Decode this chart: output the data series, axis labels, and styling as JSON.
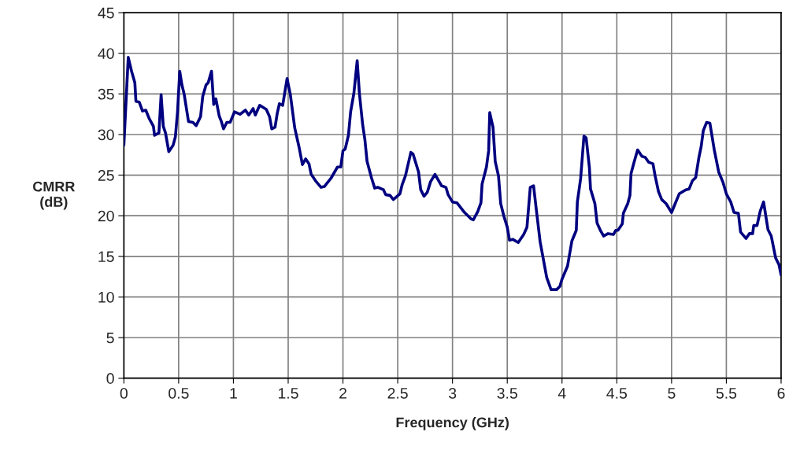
{
  "chart_data": {
    "type": "line",
    "xlabel": "Frequency (GHz)",
    "ylabel": "CMRR\n(dB)",
    "xlim": [
      0,
      6
    ],
    "xticks": [
      0,
      0.5,
      1,
      1.5,
      2,
      2.5,
      3,
      3.5,
      4,
      4.5,
      5,
      5.5,
      6
    ],
    "ylim": [
      0,
      45
    ],
    "yticks": [
      0,
      5,
      10,
      15,
      20,
      25,
      30,
      35,
      40,
      45
    ],
    "grid": true,
    "marker": "none",
    "line_style": "solid",
    "series": [
      {
        "color": "#000080",
        "x": [
          0,
          0.04,
          0.07,
          0.1,
          0.11,
          0.14,
          0.17,
          0.2,
          0.23,
          0.27,
          0.28,
          0.32,
          0.34,
          0.36,
          0.38,
          0.41,
          0.45,
          0.47,
          0.49,
          0.51,
          0.53,
          0.55,
          0.59,
          0.63,
          0.66,
          0.7,
          0.72,
          0.75,
          0.77,
          0.8,
          0.82,
          0.84,
          0.87,
          0.89,
          0.91,
          0.94,
          0.97,
          1.01,
          1.06,
          1.11,
          1.14,
          1.18,
          1.2,
          1.24,
          1.3,
          1.33,
          1.35,
          1.38,
          1.4,
          1.42,
          1.45,
          1.49,
          1.52,
          1.56,
          1.6,
          1.63,
          1.66,
          1.69,
          1.71,
          1.75,
          1.8,
          1.83,
          1.89,
          1.95,
          1.98,
          2.0,
          2.02,
          2.05,
          2.07,
          2.1,
          2.13,
          2.15,
          2.18,
          2.2,
          2.22,
          2.26,
          2.29,
          2.32,
          2.37,
          2.39,
          2.43,
          2.46,
          2.52,
          2.54,
          2.57,
          2.62,
          2.64,
          2.69,
          2.71,
          2.74,
          2.77,
          2.8,
          2.84,
          2.9,
          2.94,
          2.96,
          3.0,
          3.04,
          3.11,
          3.17,
          3.19,
          3.23,
          3.26,
          3.27,
          3.31,
          3.33,
          3.34,
          3.37,
          3.39,
          3.42,
          3.44,
          3.47,
          3.5,
          3.52,
          3.55,
          3.6,
          3.65,
          3.68,
          3.71,
          3.74,
          3.77,
          3.8,
          3.83,
          3.86,
          3.9,
          3.95,
          3.98,
          4.0,
          4.05,
          4.09,
          4.13,
          4.14,
          4.17,
          4.2,
          4.22,
          4.25,
          4.26,
          4.3,
          4.32,
          4.35,
          4.38,
          4.42,
          4.47,
          4.49,
          4.51,
          4.55,
          4.56,
          4.6,
          4.62,
          4.63,
          4.66,
          4.69,
          4.73,
          4.76,
          4.79,
          4.83,
          4.85,
          4.88,
          4.91,
          4.95,
          5.0,
          5.03,
          5.07,
          5.13,
          5.16,
          5.19,
          5.22,
          5.25,
          5.27,
          5.29,
          5.32,
          5.35,
          5.39,
          5.43,
          5.47,
          5.5,
          5.54,
          5.57,
          5.61,
          5.63,
          5.68,
          5.71,
          5.74,
          5.75,
          5.78,
          5.81,
          5.84,
          5.88,
          5.91,
          5.95,
          5.98,
          6.0
        ],
        "values": [
          28.7,
          39.5,
          37.8,
          36.4,
          34.1,
          34.0,
          32.9,
          33.0,
          32.0,
          31.0,
          29.9,
          30.2,
          34.9,
          31.0,
          30.2,
          27.9,
          28.7,
          29.7,
          32.8,
          37.8,
          36.1,
          35.0,
          31.6,
          31.5,
          31.1,
          32.2,
          34.7,
          36.1,
          36.4,
          37.8,
          33.7,
          34.4,
          32.3,
          31.6,
          30.7,
          31.5,
          31.5,
          32.8,
          32.5,
          33.0,
          32.4,
          33.2,
          32.4,
          33.6,
          33.1,
          32.2,
          30.7,
          30.9,
          32.6,
          33.8,
          33.6,
          36.9,
          34.9,
          30.8,
          28.4,
          26.3,
          27.0,
          26.4,
          25.1,
          24.3,
          23.5,
          23.6,
          24.6,
          26.0,
          26.0,
          28.0,
          28.2,
          29.9,
          32.8,
          35.1,
          39.1,
          35.1,
          31.2,
          29.4,
          26.7,
          24.7,
          23.4,
          23.5,
          23.2,
          22.6,
          22.5,
          22.0,
          22.7,
          23.8,
          24.9,
          27.8,
          27.6,
          25.4,
          23.2,
          22.4,
          22.9,
          24.2,
          25.1,
          23.7,
          23.5,
          22.6,
          21.7,
          21.6,
          20.4,
          19.6,
          19.5,
          20.5,
          21.6,
          23.9,
          26.0,
          28.0,
          32.7,
          30.9,
          26.7,
          24.9,
          21.5,
          19.9,
          18.6,
          17.0,
          17.1,
          16.7,
          17.7,
          18.6,
          23.5,
          23.7,
          20.2,
          16.8,
          14.6,
          12.4,
          10.9,
          10.9,
          11.3,
          12.2,
          13.8,
          16.9,
          18.2,
          21.7,
          24.6,
          29.8,
          29.6,
          25.9,
          23.3,
          21.5,
          19.1,
          18.2,
          17.5,
          17.8,
          17.7,
          18.2,
          18.2,
          19.0,
          20.3,
          21.5,
          22.5,
          25.2,
          26.7,
          28.1,
          27.3,
          27.2,
          26.6,
          26.4,
          24.9,
          23.0,
          22.0,
          21.5,
          20.4,
          21.4,
          22.7,
          23.2,
          23.3,
          24.3,
          24.7,
          27.2,
          28.5,
          30.5,
          31.5,
          31.4,
          28.1,
          25.4,
          24.1,
          22.7,
          21.7,
          20.4,
          20.3,
          18.0,
          17.2,
          17.8,
          17.8,
          18.8,
          18.8,
          20.6,
          21.7,
          18.3,
          17.5,
          14.8,
          14.0,
          12.7
        ]
      }
    ]
  }
}
